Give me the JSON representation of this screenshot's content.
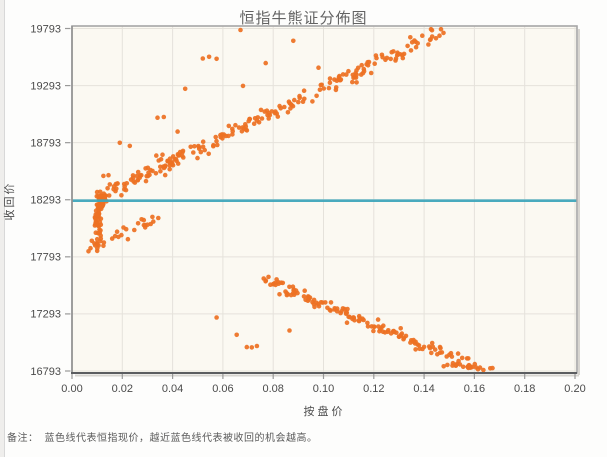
{
  "chart_data": {
    "type": "scatter",
    "title": "恒指牛熊证分佈图",
    "xlabel": "按盘价",
    "ylabel": "收回价",
    "xlim": [
      0,
      0.2
    ],
    "ylim": [
      16793,
      19793
    ],
    "x_ticks": [
      "0.00",
      "0.02",
      "0.04",
      "0.06",
      "0.08",
      "0.10",
      "0.12",
      "0.14",
      "0.16",
      "0.18",
      "0.20"
    ],
    "y_ticks": [
      19793,
      19293,
      18793,
      18293,
      17793,
      17293,
      16793
    ],
    "grid": true,
    "legend": "none",
    "plot_bg": "#fbf9f2",
    "grid_color": "#e5e2db",
    "border_color": "#a6a6a6",
    "axis_color": "#5b5d60",
    "tick_text_color": "#4b4b4b",
    "point_color": "#ed7124",
    "point_radius": 2.3,
    "hsi_line": {
      "value": 18285,
      "color": "#3fa7ba",
      "label": "恒指现价",
      "width": 2.6
    },
    "series": [
      {
        "name": "bull-band",
        "type": "linear_band",
        "from": [
          0.0095,
          18300
        ],
        "to": [
          0.148,
          19785
        ],
        "count": 240,
        "noise_y": 36,
        "noise_x": 0.0008,
        "bias": 1.15,
        "seed": 7
      },
      {
        "name": "near-call-hook",
        "type": "vertical_streak",
        "x": 0.0103,
        "noise_x": 0.001,
        "y_from": 18330,
        "y_to": 17890,
        "count": 85,
        "top_bias": 1.8,
        "bend_above": 18180,
        "bend_scale": 0.0022,
        "seed": 11
      },
      {
        "name": "bull-low-cluster",
        "type": "linear_band",
        "from": [
          0.006,
          17868
        ],
        "to": [
          0.0335,
          18125
        ],
        "count": 30,
        "noise_y": 26,
        "noise_x": 0.0012,
        "bias": 1,
        "seed": 23
      },
      {
        "name": "bear-band",
        "type": "linear_band",
        "from": [
          0.076,
          17595
        ],
        "to": [
          0.161,
          16830
        ],
        "count": 150,
        "noise_y": 26,
        "noise_x": 0.0012,
        "bias": 1,
        "seed": 5
      },
      {
        "name": "bear-band-tail",
        "type": "linear_band",
        "from": [
          0.148,
          16842
        ],
        "to": [
          0.168,
          16806
        ],
        "count": 18,
        "noise_y": 12,
        "noise_x": 0.001,
        "bias": 1,
        "seed": 9
      }
    ],
    "outliers_above": [
      [
        0.067,
        19780
      ],
      [
        0.088,
        19685
      ],
      [
        0.052,
        19530
      ],
      [
        0.0545,
        19545
      ],
      [
        0.0575,
        19528
      ],
      [
        0.077,
        19490
      ],
      [
        0.098,
        19450
      ],
      [
        0.045,
        19265
      ],
      [
        0.068,
        19290
      ],
      [
        0.034,
        19012
      ],
      [
        0.0365,
        19018
      ],
      [
        0.042,
        18890
      ],
      [
        0.023,
        18765
      ],
      [
        0.0335,
        18680
      ],
      [
        0.036,
        18688
      ],
      [
        0.0125,
        18502
      ],
      [
        0.0145,
        18508
      ],
      [
        0.019,
        18792
      ]
    ],
    "outliers_below": [
      [
        0.0575,
        17262
      ],
      [
        0.0655,
        17110
      ],
      [
        0.0695,
        17002
      ],
      [
        0.0715,
        17000
      ],
      [
        0.0735,
        17012
      ],
      [
        0.0865,
        17148
      ]
    ]
  },
  "footnote": {
    "prefix": "备注：",
    "text": "蓝色线代表恒指现价，越近蓝色线代表被收回的机会越高。"
  }
}
